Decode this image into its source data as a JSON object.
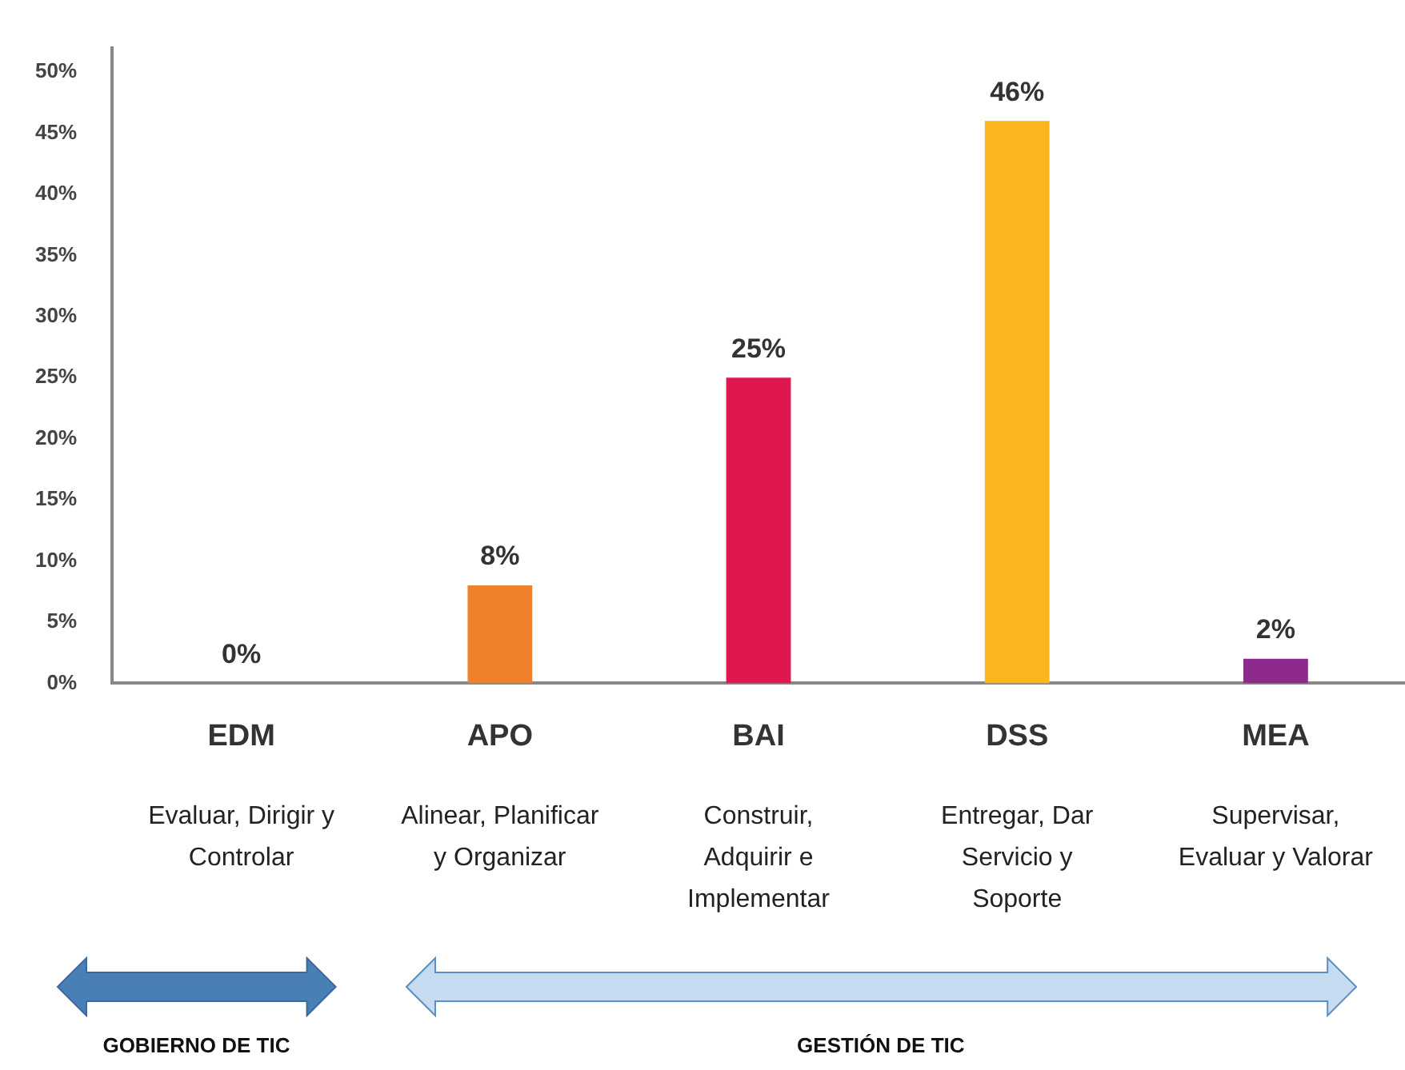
{
  "chart_data": {
    "type": "bar",
    "categories": [
      "EDM",
      "APO",
      "BAI",
      "DSS",
      "MEA"
    ],
    "values": [
      0,
      8,
      25,
      46,
      2
    ],
    "colors": [
      "#4f81bd",
      "#f0812c",
      "#e0174f",
      "#fbb51e",
      "#8e2a8c"
    ],
    "value_labels": [
      "0%",
      "8%",
      "25%",
      "46%",
      "2%"
    ],
    "ylim": [
      0,
      52
    ],
    "yticks": [
      {
        "value": 0,
        "label": "0%"
      },
      {
        "value": 5,
        "label": "5%"
      },
      {
        "value": 10,
        "label": "10%"
      },
      {
        "value": 15,
        "label": "15%"
      },
      {
        "value": 20,
        "label": "20%"
      },
      {
        "value": 25,
        "label": "25%"
      },
      {
        "value": 30,
        "label": "30%"
      },
      {
        "value": 35,
        "label": "35%"
      },
      {
        "value": 40,
        "label": "40%"
      },
      {
        "value": 45,
        "label": "45%"
      },
      {
        "value": 50,
        "label": "50%"
      }
    ],
    "annotations": [
      "Evaluar, Dirigir y Controlar",
      "Alinear, Planificar y Organizar",
      "Construir, Adquirir e Implementar",
      "Entregar, Dar Servicio y Soporte",
      "Supervisar, Evaluar y Valorar",
      "GOBIERNO DE TIC",
      "GESTIÓN DE TIC"
    ]
  }
}
